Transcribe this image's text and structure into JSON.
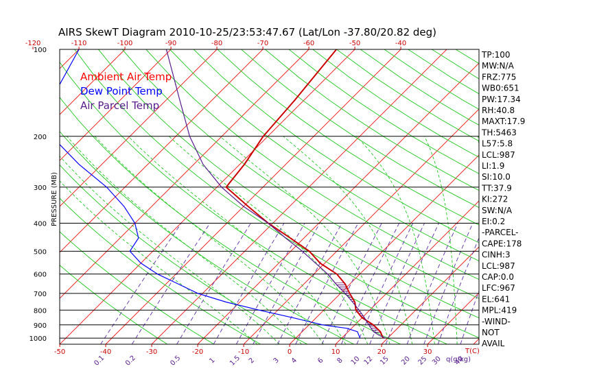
{
  "chart_data": {
    "type": "line",
    "title": "AIRS SkewT Diagram 2010-10-25/23:53:47.67 (Lat/Lon -37.80/20.82 deg)",
    "ylabel": "PRESSURE (MB)",
    "y_scale": "log",
    "ylim": [
      1050,
      100
    ],
    "pressure_ticks": [
      "100",
      "200",
      "300",
      "400",
      "500",
      "600",
      "700",
      "800",
      "900",
      "1000"
    ],
    "top_temp_ticks": [
      "-120",
      "-110",
      "-100",
      "-90",
      "-80",
      "-70",
      "-60",
      "-50",
      "-40"
    ],
    "bottom_temp_ticks": [
      "-50",
      "-40",
      "-30",
      "-20",
      "-10",
      "0",
      "10",
      "20",
      "30"
    ],
    "bottom_temp_unit": "T(C)",
    "mixing_ratio_ticks": [
      "0.1",
      "0.2",
      "0.5",
      "1",
      "1.5",
      "2",
      "3",
      "4",
      "6",
      "8",
      "10",
      "12",
      "15",
      "20",
      "25",
      "30",
      "40"
    ],
    "mixing_ratio_unit": "q(g/kg)",
    "legend": [
      {
        "label": "Ambient Air Temp",
        "color": "#ff0000"
      },
      {
        "label": "Dew Point Temp",
        "color": "#0000ff"
      },
      {
        "label": "Air Parcel Temp",
        "color": "#551a8b"
      }
    ],
    "series": [
      {
        "name": "Ambient Air Temp",
        "color": "#cc0000",
        "points": [
          [
            1000,
            19
          ],
          [
            950,
            17
          ],
          [
            900,
            14
          ],
          [
            850,
            10
          ],
          [
            800,
            7
          ],
          [
            750,
            5
          ],
          [
            700,
            2
          ],
          [
            650,
            -1
          ],
          [
            600,
            -5
          ],
          [
            550,
            -11
          ],
          [
            500,
            -16
          ],
          [
            450,
            -23
          ],
          [
            400,
            -31
          ],
          [
            350,
            -39
          ],
          [
            300,
            -48
          ],
          [
            250,
            -49
          ],
          [
            200,
            -51
          ],
          [
            150,
            -52
          ],
          [
            100,
            -54
          ]
        ]
      },
      {
        "name": "Dew Point Temp",
        "color": "#0000ff",
        "points": [
          [
            1000,
            14
          ],
          [
            950,
            12
          ],
          [
            925,
            9
          ],
          [
            900,
            3
          ],
          [
            850,
            -5
          ],
          [
            800,
            -14
          ],
          [
            750,
            -23
          ],
          [
            700,
            -31
          ],
          [
            600,
            -44
          ],
          [
            550,
            -50
          ],
          [
            500,
            -55
          ],
          [
            450,
            -56
          ],
          [
            400,
            -60
          ],
          [
            350,
            -66
          ],
          [
            300,
            -74
          ],
          [
            250,
            -85
          ],
          [
            200,
            -97
          ],
          [
            150,
            -105
          ],
          [
            100,
            -110
          ]
        ]
      },
      {
        "name": "Air Parcel Temp",
        "color": "#551a8b",
        "points": [
          [
            1000,
            19.5
          ],
          [
            975,
            17.3
          ],
          [
            950,
            15.5
          ],
          [
            900,
            13
          ],
          [
            850,
            10.5
          ],
          [
            800,
            7.7
          ],
          [
            750,
            4.5
          ],
          [
            700,
            1
          ],
          [
            650,
            -3
          ],
          [
            600,
            -7
          ],
          [
            550,
            -12
          ],
          [
            500,
            -17.5
          ],
          [
            450,
            -24
          ],
          [
            400,
            -31
          ],
          [
            350,
            -40
          ],
          [
            300,
            -49
          ],
          [
            250,
            -58
          ],
          [
            200,
            -67
          ],
          [
            150,
            -77
          ],
          [
            100,
            -91
          ]
        ]
      }
    ],
    "stats": [
      "TP:100",
      "MW:N/A",
      "FRZ:775",
      "WB0:651",
      "PW:17.34",
      "RH:40.8",
      "MAXT:17.9",
      "TH:5463",
      "L57:5.8",
      "LCL:987",
      "LI:1.9",
      "SI:10.0",
      "TT:37.9",
      "KI:272",
      "SW:N/A",
      "EI:0.2",
      "-PARCEL-",
      "CAPE:178",
      "CINH:3",
      "LCL:987",
      "CAP:0.0",
      "LFC:967",
      "EL:641",
      "MPL:419",
      "-WIND-",
      "NOT",
      "AVAIL"
    ],
    "colors": {
      "isotherm": "#ee2222",
      "dry_adiabat": "#33cc33",
      "moist_adiabat": "#33cc33",
      "mixing_ratio": "#6a3fb0",
      "isobar": "#000000",
      "shading": "#7a2a8a"
    }
  }
}
